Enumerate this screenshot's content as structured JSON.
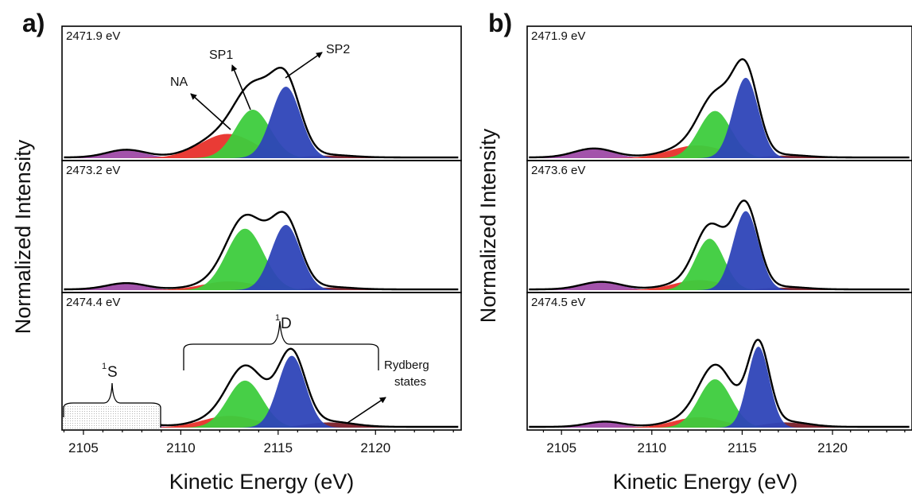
{
  "figure": {
    "panel_labels": [
      "a)",
      "b)"
    ],
    "ylabel": "Normalized Intensity",
    "xlabel": "Kinetic Energy (eV)",
    "colors": {
      "purple": "#9e4aa6",
      "red": "#e8302a",
      "green": "#3dcc3d",
      "blue": "#2e44b8",
      "darkred": "#7a1f2a",
      "envelope": "#000000"
    }
  },
  "annotations": {
    "na": "NA",
    "sp1": "SP1",
    "sp2": "SP2",
    "one_s_sup": "1",
    "one_s_letter": "S",
    "one_d_sup": "1",
    "one_d_letter": "D",
    "rydberg_line1": "Rydberg",
    "rydberg_line2": "states"
  },
  "chart_data": [
    {
      "type": "area",
      "panel": "a)",
      "xlim": [
        2103.9,
        2124.4
      ],
      "xticks": [
        2105,
        2110,
        2115,
        2120
      ],
      "xlabel": "Kinetic Energy (eV)",
      "ylabel": "Normalized Intensity",
      "subpanels": [
        {
          "label": "2471.9 eV",
          "ylim": [
            0,
            1
          ],
          "components": [
            {
              "color": "purple",
              "center": 2107.2,
              "height": 0.06,
              "width": 1.0
            },
            {
              "color": "red",
              "center": 2112.4,
              "height": 0.19,
              "width": 1.4
            },
            {
              "color": "green",
              "center": 2113.7,
              "height": 0.38,
              "width": 0.9
            },
            {
              "color": "blue",
              "center": 2115.4,
              "height": 0.56,
              "width": 0.75
            },
            {
              "color": "darkred",
              "center": 2117.5,
              "height": 0.02,
              "width": 1.2
            }
          ],
          "envelope": {
            "ends": [
              2104.0,
              2124.3
            ],
            "peak": 2115.2,
            "peak_height": 0.67
          }
        },
        {
          "label": "2473.2 eV",
          "ylim": [
            0,
            1
          ],
          "components": [
            {
              "color": "purple",
              "center": 2107.2,
              "height": 0.05,
              "width": 1.0
            },
            {
              "color": "red",
              "center": 2112.5,
              "height": 0.07,
              "width": 1.4
            },
            {
              "color": "green",
              "center": 2113.3,
              "height": 0.49,
              "width": 0.95
            },
            {
              "color": "blue",
              "center": 2115.4,
              "height": 0.52,
              "width": 0.75
            },
            {
              "color": "darkred",
              "center": 2117.5,
              "height": 0.02,
              "width": 1.2
            }
          ],
          "envelope": {
            "ends": [
              2104.0,
              2124.3
            ],
            "peak": 2115.2,
            "peak_height": 0.63
          }
        },
        {
          "label": "2474.4 eV",
          "ylim": [
            0,
            1
          ],
          "components": [
            {
              "color": "purple",
              "center": 2107.2,
              "height": 0.05,
              "width": 1.0
            },
            {
              "color": "red",
              "center": 2112.5,
              "height": 0.09,
              "width": 1.4
            },
            {
              "color": "green",
              "center": 2113.3,
              "height": 0.36,
              "width": 0.9
            },
            {
              "color": "blue",
              "center": 2115.7,
              "height": 0.55,
              "width": 0.7
            },
            {
              "color": "darkred",
              "center": 2117.6,
              "height": 0.04,
              "width": 1.2
            }
          ],
          "envelope": {
            "ends": [
              2104.0,
              2124.3
            ],
            "peak": 2115.6,
            "peak_height": 0.64
          }
        }
      ]
    },
    {
      "type": "area",
      "panel": "b)",
      "xlim": [
        2103.1,
        2124.4
      ],
      "xticks": [
        2105,
        2110,
        2115,
        2120
      ],
      "xlabel": "Kinetic Energy (eV)",
      "ylabel": "Normalized Intensity",
      "subpanels": [
        {
          "label": "2471.9 eV",
          "ylim": [
            0,
            1
          ],
          "components": [
            {
              "color": "purple",
              "center": 2106.8,
              "height": 0.07,
              "width": 1.1
            },
            {
              "color": "red",
              "center": 2112.5,
              "height": 0.1,
              "width": 1.5
            },
            {
              "color": "green",
              "center": 2113.5,
              "height": 0.37,
              "width": 0.9
            },
            {
              "color": "blue",
              "center": 2115.2,
              "height": 0.63,
              "width": 0.7
            },
            {
              "color": "darkred",
              "center": 2117.3,
              "height": 0.02,
              "width": 1.2
            }
          ],
          "envelope": {
            "ends": [
              2103.2,
              2124.3
            ],
            "peak": 2115.0,
            "peak_height": 0.74
          }
        },
        {
          "label": "2473.6 eV",
          "ylim": [
            0,
            1
          ],
          "components": [
            {
              "color": "purple",
              "center": 2107.2,
              "height": 0.06,
              "width": 1.1
            },
            {
              "color": "red",
              "center": 2112.6,
              "height": 0.08,
              "width": 1.4
            },
            {
              "color": "green",
              "center": 2113.2,
              "height": 0.41,
              "width": 0.8
            },
            {
              "color": "blue",
              "center": 2115.2,
              "height": 0.63,
              "width": 0.7
            },
            {
              "color": "darkred",
              "center": 2117.3,
              "height": 0.02,
              "width": 1.2
            }
          ],
          "envelope": {
            "ends": [
              2103.2,
              2124.3
            ],
            "peak": 2115.1,
            "peak_height": 0.73
          }
        },
        {
          "label": "2474.5 eV",
          "ylim": [
            0,
            1
          ],
          "components": [
            {
              "color": "purple",
              "center": 2107.4,
              "height": 0.04,
              "width": 1.0
            },
            {
              "color": "red",
              "center": 2112.6,
              "height": 0.08,
              "width": 1.4
            },
            {
              "color": "green",
              "center": 2113.5,
              "height": 0.37,
              "width": 0.9
            },
            {
              "color": "blue",
              "center": 2115.9,
              "height": 0.62,
              "width": 0.6
            },
            {
              "color": "darkred",
              "center": 2117.4,
              "height": 0.04,
              "width": 1.2
            }
          ],
          "envelope": {
            "ends": [
              2103.2,
              2124.3
            ],
            "peak": 2115.8,
            "peak_height": 0.71
          }
        }
      ]
    }
  ]
}
